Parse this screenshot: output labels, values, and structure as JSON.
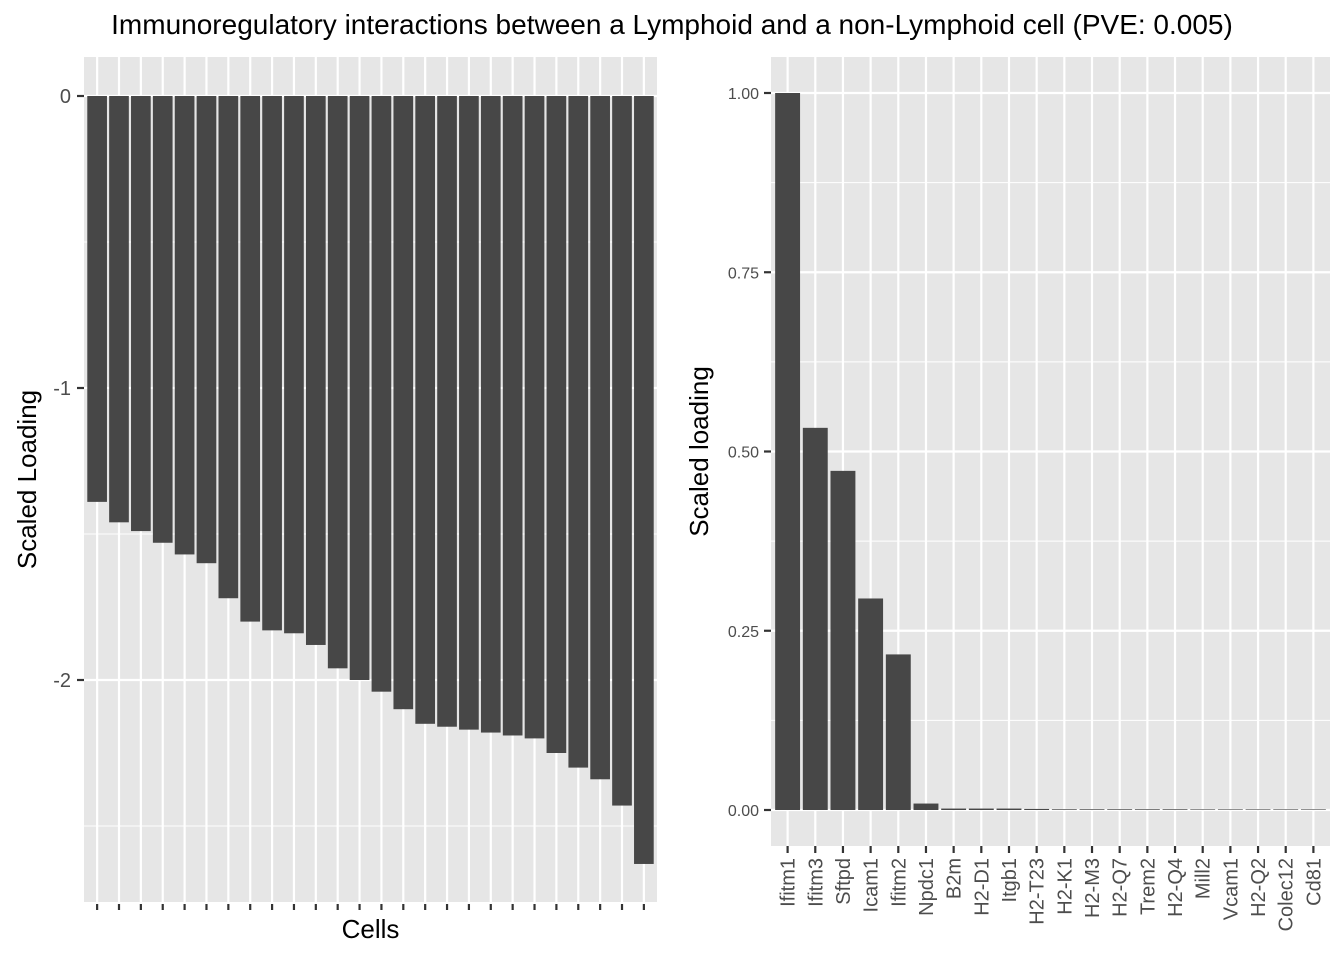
{
  "title": "Immunoregulatory interactions between a Lymphoid and a non-Lymphoid cell (PVE: 0.005)",
  "colors": {
    "panel_background": "#e6e6e6",
    "grid_line": "#ffffff",
    "bar_fill": "#474747",
    "axis_text": "#4d4d4d",
    "title_text": "#000000"
  },
  "chart_data": [
    {
      "type": "bar",
      "xlabel": "Cells",
      "ylabel": "Scaled Loading",
      "ylim": [
        -2.6,
        0.13
      ],
      "y_ticks": [
        0,
        -1,
        -2
      ],
      "y_tick_labels": [
        "0",
        "-1",
        "-2"
      ],
      "grid": true,
      "x_tick_labels_shown": false,
      "values": [
        -1.39,
        -1.46,
        -1.49,
        -1.53,
        -1.57,
        -1.6,
        -1.72,
        -1.8,
        -1.83,
        -1.84,
        -1.88,
        -1.96,
        -2.0,
        -2.04,
        -2.1,
        -2.15,
        -2.16,
        -2.17,
        -2.18,
        -2.19,
        -2.2,
        -2.25,
        -2.3,
        -2.34,
        -2.43,
        -2.63
      ]
    },
    {
      "type": "bar",
      "xlabel": "",
      "ylabel": "Scaled loading",
      "ylim": [
        -0.05,
        1.05
      ],
      "y_ticks": [
        0,
        0.25,
        0.5,
        0.75,
        1.0
      ],
      "y_tick_labels": [
        "0.00",
        "0.25",
        "0.50",
        "0.75",
        "1.00"
      ],
      "grid": true,
      "categories": [
        "Ifitm1",
        "Ifitm3",
        "Sftpd",
        "Icam1",
        "Ifitm2",
        "Npdc1",
        "B2m",
        "H2-D1",
        "Itgb1",
        "H2-T23",
        "H2-K1",
        "H2-M3",
        "H2-Q7",
        "Trem2",
        "H2-Q4",
        "Mill2",
        "Vcam1",
        "H2-Q2",
        "Colec12",
        "Cd81"
      ],
      "values": [
        1.0,
        0.533,
        0.473,
        0.295,
        0.217,
        0.009,
        0.002,
        0.002,
        0.002,
        0.0015,
        0.001,
        0.001,
        0.001,
        0.001,
        0.001,
        0.0005,
        0.0005,
        0.0005,
        0.0003,
        0.0002
      ]
    }
  ]
}
